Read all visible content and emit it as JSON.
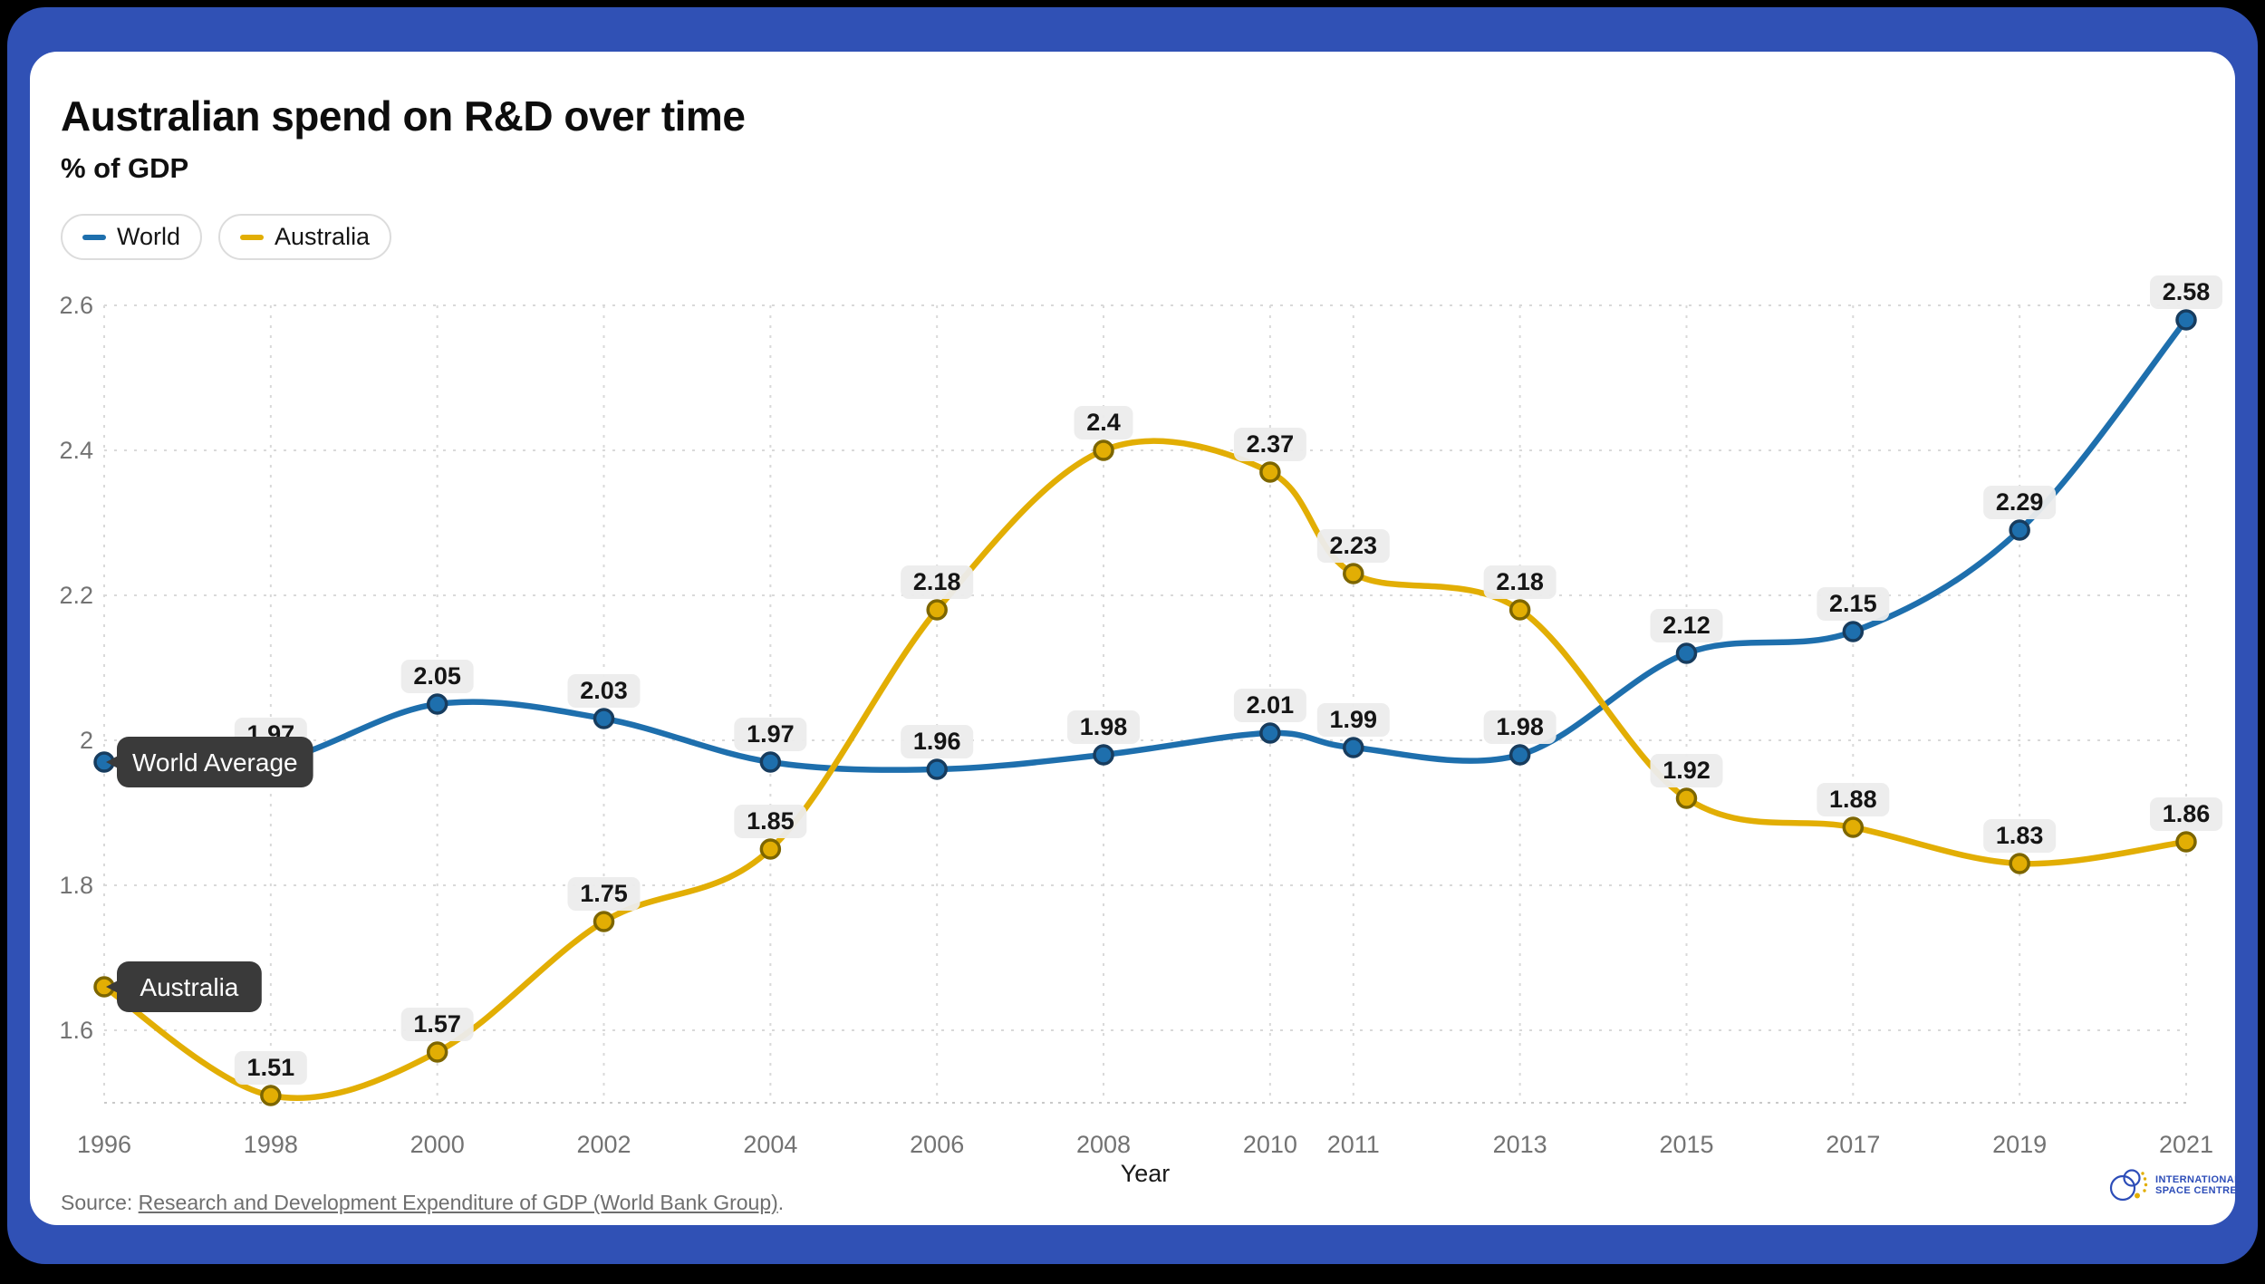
{
  "title": "Australian spend on R&D over time",
  "subtitle": "% of GDP",
  "legend": [
    {
      "label": "World",
      "color": "#1e6fad"
    },
    {
      "label": "Australia",
      "color": "#e2ae04"
    }
  ],
  "chart_data": {
    "type": "line",
    "title": "Australian spend on R&D over time",
    "subtitle": "% of GDP",
    "xlabel": "Year",
    "ylabel": "% of GDP",
    "xlim": [
      1996,
      2021
    ],
    "ylim": [
      1.5,
      2.6
    ],
    "yticks": [
      1.6,
      1.8,
      2,
      2.2,
      2.4,
      2.6
    ],
    "grid": "dashed",
    "legend_position": "top-left",
    "x": [
      1996,
      1998,
      2000,
      2002,
      2004,
      2006,
      2008,
      2010,
      2011,
      2013,
      2015,
      2017,
      2019,
      2021
    ],
    "series": [
      {
        "name": "World",
        "color": "#1e6fad",
        "dot_stroke": "#173c5e",
        "values": [
          1.97,
          1.97,
          2.05,
          2.03,
          1.97,
          1.96,
          1.98,
          2.01,
          1.99,
          1.98,
          2.12,
          2.15,
          2.29,
          2.58
        ],
        "labels": [
          null,
          "1.97",
          "2.05",
          "2.03",
          "1.97",
          "1.96",
          "1.98",
          "2.01",
          "1.99",
          "1.98",
          "2.12",
          "2.15",
          "2.29",
          "2.58"
        ]
      },
      {
        "name": "Australia",
        "color": "#e2ae04",
        "dot_stroke": "#7d6600",
        "values": [
          1.66,
          1.51,
          1.57,
          1.75,
          1.85,
          2.18,
          2.4,
          2.37,
          2.23,
          2.18,
          1.92,
          1.88,
          1.83,
          1.86
        ],
        "labels": [
          null,
          "1.51",
          "1.57",
          "1.75",
          "1.85",
          "2.18",
          "2.4",
          "2.37",
          "2.23",
          "2.18",
          "1.92",
          "1.88",
          "1.83",
          "1.86"
        ]
      }
    ],
    "annotations": [
      {
        "text": "World Average",
        "series": 0,
        "year": 1996
      },
      {
        "text": "Australia",
        "series": 1,
        "year": 1996
      }
    ]
  },
  "footer": {
    "source_prefix": "Source: ",
    "source_link": "Research and Development Expenditure of GDP (World Bank Group)",
    "source_suffix": "."
  },
  "logo": {
    "line1": "INTERNATIONAL",
    "line2": "SPACE CENTRE"
  },
  "colors": {
    "frame": "#3051b5",
    "card": "#ffffff",
    "gridline": "#d9d9d9",
    "baseline": "#c9c9c9",
    "tick_text": "#737373",
    "value_pill_bg": "#ececec",
    "value_pill_text": "#151515",
    "tooltip_bg": "#3a3a3a",
    "tooltip_text": "#ffffff"
  }
}
